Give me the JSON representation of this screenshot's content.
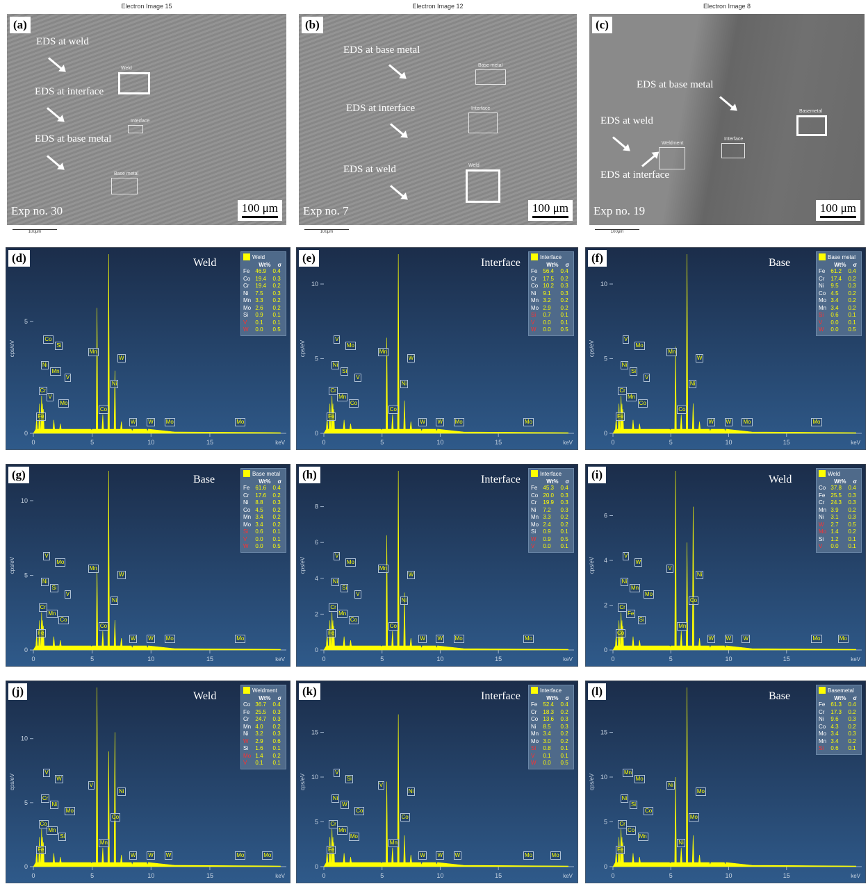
{
  "sem_panels": [
    {
      "letter": "(a)",
      "title": "Electron Image 15",
      "exp": "Exp no. 30",
      "scale": "100 μm",
      "micro": "100μm",
      "labels": [
        {
          "text": "EDS at weld",
          "l": 42,
          "t": 32,
          "al": 60,
          "at": 62,
          "rot": 40
        },
        {
          "text": "EDS at interface",
          "l": 40,
          "t": 104,
          "al": 58,
          "at": 134,
          "rot": 40
        },
        {
          "text": "EDS at base metal",
          "l": 40,
          "t": 172,
          "al": 58,
          "at": 203,
          "rot": 40
        }
      ],
      "rects": [
        {
          "name": "Weld",
          "l": 160,
          "t": 84,
          "w": 46,
          "h": 32,
          "thick": true
        },
        {
          "name": "Interface",
          "l": 174,
          "t": 160,
          "w": 22,
          "h": 12,
          "thick": false
        },
        {
          "name": "Base metal",
          "l": 150,
          "t": 236,
          "w": 38,
          "h": 24,
          "thick": false
        }
      ]
    },
    {
      "letter": "(b)",
      "title": "Electron Image 12",
      "exp": "Exp no. 7",
      "scale": "100 μm",
      "micro": "100μm",
      "labels": [
        {
          "text": "EDS at base metal",
          "l": 64,
          "t": 44,
          "al": 130,
          "at": 72,
          "rot": 40
        },
        {
          "text": "EDS at interface",
          "l": 68,
          "t": 128,
          "al": 132,
          "at": 157,
          "rot": 40
        },
        {
          "text": "EDS at weld",
          "l": 64,
          "t": 216,
          "al": 132,
          "at": 246,
          "rot": 40
        }
      ],
      "rects": [
        {
          "name": "Base metal",
          "l": 254,
          "t": 80,
          "w": 44,
          "h": 22,
          "thick": false
        },
        {
          "name": "Interface",
          "l": 244,
          "t": 142,
          "w": 42,
          "h": 30,
          "thick": false
        },
        {
          "name": "Weld",
          "l": 240,
          "t": 224,
          "w": 50,
          "h": 48,
          "thick": true
        }
      ]
    },
    {
      "letter": "(c)",
      "title": "Electron Image 8",
      "exp": "Exp no. 19",
      "scale": "100 μm",
      "micro": "100μm",
      "labels": [
        {
          "text": "EDS at base metal",
          "l": 68,
          "t": 94,
          "al": 188,
          "at": 118,
          "rot": 40
        },
        {
          "text": "EDS at weld",
          "l": 16,
          "t": 146,
          "al": 34,
          "at": 176,
          "rot": 40
        },
        {
          "text": "EDS at interface",
          "l": 16,
          "t": 224,
          "al": 76,
          "at": 218,
          "rot": -40
        }
      ],
      "rects": [
        {
          "name": "Weldment",
          "l": 100,
          "t": 192,
          "w": 38,
          "h": 32,
          "thick": false
        },
        {
          "name": "Interface",
          "l": 190,
          "t": 186,
          "w": 34,
          "h": 22,
          "thick": false
        },
        {
          "name": "Basemetal",
          "l": 298,
          "t": 146,
          "w": 44,
          "h": 30,
          "thick": true
        }
      ]
    }
  ],
  "eds_panels": [
    {
      "letter": "(d)",
      "title": "Weld",
      "legend": "Weld",
      "ymax": 8,
      "yticks": [
        0,
        5
      ],
      "fe": 8,
      "cr": 5.6,
      "co": 2.8,
      "rows": [
        [
          "Fe",
          "46.9",
          "0.4",
          false
        ],
        [
          "Co",
          "19.4",
          "0.3",
          false
        ],
        [
          "Cr",
          "19.4",
          "0.2",
          false
        ],
        [
          "Ni",
          "7.5",
          "0.3",
          false
        ],
        [
          "Mn",
          "3.3",
          "0.2",
          false
        ],
        [
          "Mo",
          "2.6",
          "0.2",
          false
        ],
        [
          "Si",
          "0.9",
          "0.1",
          false
        ],
        [
          "V",
          "0.1",
          "0.1",
          true
        ],
        [
          "W",
          "0.0",
          "0.5",
          true
        ]
      ],
      "tags": [
        "Fe",
        "Cr",
        "Ni",
        "Co",
        "V",
        "Mn",
        "Si",
        "Mo",
        "V",
        "Mn",
        "Co",
        "Ni",
        "W",
        "W",
        "W",
        "Mo",
        "Mo"
      ]
    },
    {
      "letter": "(e)",
      "title": "Interface",
      "legend": "Interface",
      "ymax": 12,
      "yticks": [
        0,
        5,
        10
      ],
      "fe": 12,
      "cr": 6.4,
      "co": 2.2,
      "rows": [
        [
          "Fe",
          "56.4",
          "0.4",
          false
        ],
        [
          "Cr",
          "17.5",
          "0.2",
          false
        ],
        [
          "Co",
          "10.2",
          "0.3",
          false
        ],
        [
          "Ni",
          "9.1",
          "0.3",
          false
        ],
        [
          "Mn",
          "3.2",
          "0.2",
          false
        ],
        [
          "Mo",
          "2.9",
          "0.2",
          false
        ],
        [
          "Si",
          "0.7",
          "0.1",
          true
        ],
        [
          "V",
          "0.0",
          "0.1",
          true
        ],
        [
          "W",
          "0.0",
          "0.5",
          true
        ]
      ],
      "tags": [
        "Fe",
        "Cr",
        "Ni",
        "V",
        "Mn",
        "Si",
        "Mo",
        "Co",
        "V",
        "Mn",
        "Co",
        "Ni",
        "W",
        "W",
        "W",
        "Mo",
        "Mo"
      ]
    },
    {
      "letter": "(f)",
      "title": "Base",
      "legend": "Base metal",
      "ymax": 12,
      "yticks": [
        0,
        5,
        10
      ],
      "fe": 12,
      "cr": 5.8,
      "co": 2,
      "rows": [
        [
          "Fe",
          "61.2",
          "0.4",
          false
        ],
        [
          "Cr",
          "17.4",
          "0.2",
          false
        ],
        [
          "Ni",
          "9.5",
          "0.3",
          false
        ],
        [
          "Co",
          "4.5",
          "0.2",
          false
        ],
        [
          "Mo",
          "3.4",
          "0.2",
          false
        ],
        [
          "Mn",
          "3.4",
          "0.2",
          false
        ],
        [
          "Si",
          "0.6",
          "0.1",
          true
        ],
        [
          "V",
          "0.0",
          "0.1",
          true
        ],
        [
          "W",
          "0.0",
          "0.5",
          true
        ]
      ],
      "tags": [
        "Fe",
        "Cr",
        "Ni",
        "V",
        "Mn",
        "Si",
        "Mo",
        "Co",
        "V",
        "Mn",
        "Co",
        "Ni",
        "W",
        "W",
        "W",
        "Mo",
        "Mo"
      ]
    },
    {
      "letter": "(g)",
      "title": "Base",
      "legend": "Base metal",
      "ymax": 12,
      "yticks": [
        0,
        5,
        10
      ],
      "fe": 12,
      "cr": 5.6,
      "co": 2,
      "rows": [
        [
          "Fe",
          "61.6",
          "0.4",
          false
        ],
        [
          "Cr",
          "17.6",
          "0.2",
          false
        ],
        [
          "Ni",
          "8.8",
          "0.3",
          false
        ],
        [
          "Co",
          "4.5",
          "0.2",
          false
        ],
        [
          "Mn",
          "3.4",
          "0.2",
          false
        ],
        [
          "Mo",
          "3.4",
          "0.2",
          false
        ],
        [
          "Si",
          "0.6",
          "0.1",
          true
        ],
        [
          "V",
          "0.0",
          "0.1",
          true
        ],
        [
          "W",
          "0.0",
          "0.5",
          true
        ]
      ],
      "tags": [
        "Fe",
        "Cr",
        "Ni",
        "V",
        "Mn",
        "Si",
        "Mo",
        "Co",
        "V",
        "Mn",
        "Co",
        "Ni",
        "W",
        "W",
        "W",
        "Mo",
        "Mo"
      ]
    },
    {
      "letter": "(h)",
      "title": "Interface",
      "legend": "Interface",
      "ymax": 10,
      "yticks": [
        0,
        2,
        4,
        6,
        8
      ],
      "fe": 10,
      "cr": 6.4,
      "co": 3.2,
      "rows": [
        [
          "Fe",
          "45.3",
          "0.4",
          false
        ],
        [
          "Co",
          "20.0",
          "0.3",
          false
        ],
        [
          "Cr",
          "19.9",
          "0.3",
          false
        ],
        [
          "Ni",
          "7.2",
          "0.3",
          false
        ],
        [
          "Mn",
          "3.3",
          "0.2",
          false
        ],
        [
          "Mo",
          "2.4",
          "0.2",
          false
        ],
        [
          "Si",
          "0.9",
          "0.1",
          false
        ],
        [
          "W",
          "0.9",
          "0.5",
          true
        ],
        [
          "V",
          "0.0",
          "0.1",
          true
        ]
      ],
      "tags": [
        "Fe",
        "Cr",
        "Ni",
        "V",
        "Mn",
        "Si",
        "Mo",
        "Co",
        "V",
        "Mn",
        "Co",
        "Ni",
        "W",
        "W",
        "W",
        "Mo",
        "Mo"
      ]
    },
    {
      "letter": "(i)",
      "title": "Weld",
      "legend": "Weld",
      "ymax": 8,
      "yticks": [
        0,
        2,
        4,
        6
      ],
      "fe": 4.8,
      "cr": 8,
      "co": 6.4,
      "rows": [
        [
          "Co",
          "37.8",
          "0.4",
          false
        ],
        [
          "Fe",
          "25.5",
          "0.3",
          false
        ],
        [
          "Cr",
          "24.3",
          "0.3",
          false
        ],
        [
          "Mn",
          "3.9",
          "0.2",
          false
        ],
        [
          "Ni",
          "3.1",
          "0.3",
          false
        ],
        [
          "W",
          "2.7",
          "0.5",
          true
        ],
        [
          "Mo",
          "1.4",
          "0.2",
          true
        ],
        [
          "Si",
          "1.2",
          "0.1",
          false
        ],
        [
          "V",
          "0.0",
          "0.1",
          true
        ]
      ],
      "tags": [
        "Co",
        "Cr",
        "Ni",
        "V",
        "Fe",
        "Mn",
        "W",
        "Si",
        "Mo",
        "V",
        "Mn",
        "Co",
        "Ni",
        "W",
        "W",
        "W",
        "Mo",
        "Mo"
      ]
    },
    {
      "letter": "(j)",
      "title": "Weld",
      "legend": "Weldment",
      "ymax": 14,
      "yticks": [
        0,
        5,
        10
      ],
      "fe": 9,
      "cr": 14,
      "co": 10.5,
      "rows": [
        [
          "Co",
          "36.7",
          "0.4",
          false
        ],
        [
          "Fe",
          "25.5",
          "0.3",
          false
        ],
        [
          "Cr",
          "24.7",
          "0.3",
          false
        ],
        [
          "Mn",
          "4.0",
          "0.2",
          false
        ],
        [
          "Ni",
          "3.2",
          "0.3",
          false
        ],
        [
          "W",
          "2.9",
          "0.6",
          true
        ],
        [
          "Si",
          "1.6",
          "0.1",
          false
        ],
        [
          "Mo",
          "1.4",
          "0.2",
          true
        ],
        [
          "V",
          "0.1",
          "0.1",
          true
        ]
      ],
      "tags": [
        "Fe",
        "Co",
        "Cr",
        "V",
        "Mn",
        "Ni",
        "W",
        "Si",
        "Mo",
        "V",
        "Mn",
        "Co",
        "Ni",
        "W",
        "W",
        "W",
        "Mo",
        "Mo"
      ]
    },
    {
      "letter": "(k)",
      "title": "Interface",
      "legend": "Interface",
      "ymax": 20,
      "yticks": [
        0,
        5,
        10,
        15
      ],
      "fe": 17,
      "cr": 9.5,
      "co": 3.5,
      "rows": [
        [
          "Fe",
          "52.4",
          "0.4",
          false
        ],
        [
          "Cr",
          "18.3",
          "0.2",
          false
        ],
        [
          "Co",
          "13.6",
          "0.3",
          false
        ],
        [
          "Ni",
          "8.5",
          "0.3",
          false
        ],
        [
          "Mn",
          "3.4",
          "0.2",
          false
        ],
        [
          "Mo",
          "3.0",
          "0.2",
          false
        ],
        [
          "Si",
          "0.8",
          "0.1",
          true
        ],
        [
          "V",
          "0.1",
          "0.1",
          true
        ],
        [
          "W",
          "0.0",
          "0.5",
          true
        ]
      ],
      "tags": [
        "Fe",
        "Cr",
        "Ni",
        "V",
        "Mn",
        "W",
        "Si",
        "Mo",
        "Co",
        "V",
        "Mn",
        "Co",
        "Ni",
        "W",
        "W",
        "W",
        "Mo",
        "Mo"
      ]
    },
    {
      "letter": "(l)",
      "title": "Base",
      "legend": "Basemetal",
      "ymax": 20,
      "yticks": [
        0,
        5,
        10,
        15
      ],
      "fe": 20,
      "cr": 10,
      "co": 3.5,
      "rows": [
        [
          "Fe",
          "61.3",
          "0.4",
          false
        ],
        [
          "Cr",
          "17.3",
          "0.2",
          false
        ],
        [
          "Ni",
          "9.6",
          "0.3",
          false
        ],
        [
          "Co",
          "4.3",
          "0.2",
          false
        ],
        [
          "Mo",
          "3.4",
          "0.3",
          false
        ],
        [
          "Mn",
          "3.4",
          "0.2",
          false
        ],
        [
          "Si",
          "0.6",
          "0.1",
          true
        ]
      ],
      "tags": [
        "Fe",
        "Cr",
        "Ni",
        "Mn",
        "Co",
        "Si",
        "Mo",
        "Mn",
        "Co",
        "Ni",
        "Ni",
        "Mo",
        "Mo"
      ]
    }
  ],
  "axis": {
    "ylabel": "cps/eV",
    "xunit": "keV",
    "xticks": [
      "0",
      "5",
      "10",
      "15"
    ],
    "wt_header": "Wt%",
    "sigma_header": "σ"
  }
}
